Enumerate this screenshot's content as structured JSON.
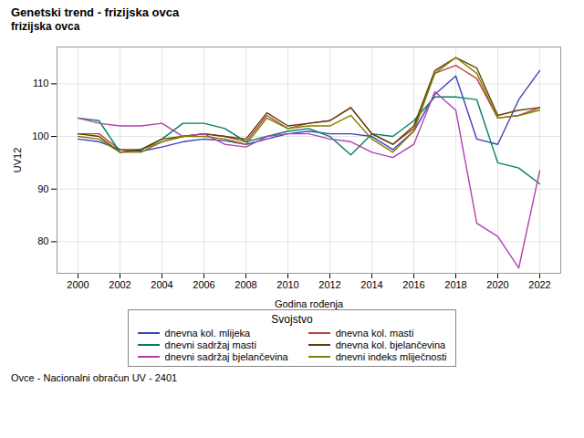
{
  "chart_data": {
    "type": "line",
    "title": "Genetski trend - frizijska ovca",
    "subtitle": "frizijska ovca",
    "xlabel": "Godina rođenja",
    "ylabel": "UV12",
    "caption": "Ovce - Nacionalni obračun UV - 2401",
    "legend_title": "Svojstvo",
    "legend": "bottom",
    "grid": true,
    "xlim": [
      1999,
      2023
    ],
    "ylim": [
      74,
      117
    ],
    "xticks": [
      2000,
      2002,
      2004,
      2006,
      2008,
      2010,
      2012,
      2014,
      2016,
      2018,
      2020,
      2022
    ],
    "yticks": [
      80,
      90,
      100,
      110
    ],
    "x": [
      2000,
      2001,
      2002,
      2003,
      2004,
      2005,
      2006,
      2007,
      2008,
      2009,
      2010,
      2011,
      2012,
      2013,
      2014,
      2015,
      2016,
      2017,
      2018,
      2019,
      2020,
      2021,
      2022
    ],
    "series": [
      {
        "name": "dnevna kol. mlijeka",
        "color": "#4040c0",
        "values": [
          99.5,
          99.0,
          97.5,
          97.2,
          98.0,
          99.0,
          99.5,
          99.2,
          98.5,
          99.5,
          100.5,
          101.0,
          100.5,
          100.5,
          100.0,
          97.5,
          101.0,
          108.0,
          111.5,
          99.5,
          98.5,
          107.0,
          112.5
        ]
      },
      {
        "name": "dnevna kol. masti",
        "color": "#c04040",
        "values": [
          100.5,
          100.5,
          97.5,
          97.5,
          99.0,
          100.0,
          100.5,
          100.0,
          99.0,
          104.0,
          101.5,
          102.5,
          103.0,
          105.5,
          100.5,
          98.5,
          101.5,
          112.0,
          113.5,
          111.0,
          103.5,
          104.0,
          105.5
        ]
      },
      {
        "name": "dnevni sadržaj masti",
        "color": "#008060",
        "values": [
          103.5,
          103.0,
          97.0,
          97.5,
          99.5,
          102.5,
          102.5,
          101.5,
          99.0,
          100.0,
          101.0,
          101.5,
          100.0,
          96.5,
          100.5,
          100.0,
          103.0,
          107.5,
          107.5,
          107.0,
          95.0,
          94.0,
          91.0
        ]
      },
      {
        "name": "dnevna kol. bjelančevina",
        "color": "#604000",
        "values": [
          100.5,
          100.0,
          97.0,
          97.5,
          99.5,
          100.0,
          100.5,
          100.0,
          99.5,
          104.5,
          102.0,
          102.5,
          103.0,
          105.5,
          100.5,
          98.5,
          102.0,
          112.5,
          115.0,
          113.0,
          104.0,
          105.0,
          105.5
        ]
      },
      {
        "name": "dnevni sadržaj bjelančevina",
        "color": "#b040b0",
        "values": [
          103.5,
          102.5,
          102.0,
          102.0,
          102.5,
          100.0,
          100.5,
          98.5,
          98.0,
          100.0,
          100.5,
          100.5,
          99.5,
          99.0,
          97.0,
          96.0,
          98.5,
          108.5,
          105.0,
          83.5,
          81.0,
          75.0,
          93.5
        ]
      },
      {
        "name": "dnevni indeks mliječnosti",
        "color": "#808000",
        "values": [
          100.0,
          99.5,
          97.0,
          97.0,
          99.0,
          100.0,
          100.0,
          99.5,
          98.5,
          103.5,
          101.5,
          102.0,
          102.0,
          104.0,
          99.5,
          97.0,
          101.0,
          112.0,
          115.0,
          112.0,
          103.5,
          104.0,
          105.0
        ]
      }
    ]
  }
}
